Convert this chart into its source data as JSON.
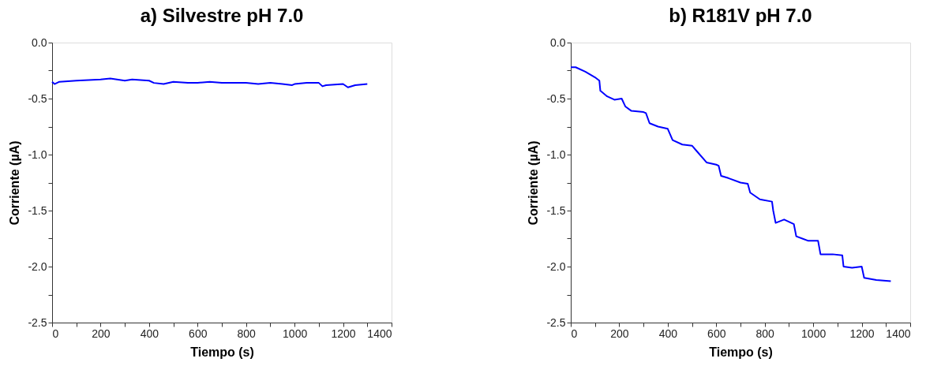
{
  "chart_data": [
    {
      "type": "line",
      "title": "a) Silvestre pH 7.0",
      "xlabel": "Tiempo (s)",
      "ylabel": "Corriente (µA)",
      "grid": false,
      "line_style": "solid",
      "xlim": [
        0,
        1400
      ],
      "ylim": [
        -2.5,
        0
      ],
      "xticks": [
        0,
        {
          "value": 100,
          "label": null
        },
        200,
        {
          "value": 300,
          "label": null
        },
        400,
        {
          "value": 500,
          "label": null
        },
        600,
        {
          "value": 700,
          "label": null
        },
        800,
        {
          "value": 900,
          "label": null
        },
        1000,
        {
          "value": 1100,
          "label": null
        },
        1200,
        {
          "value": 1300,
          "label": null
        },
        1400
      ],
      "yticks": [
        {
          "value": -2.5,
          "label": "-2.5"
        },
        {
          "value": -2.25,
          "label": null
        },
        {
          "value": -2,
          "label": "-2.0"
        },
        {
          "value": -1.75,
          "label": null
        },
        {
          "value": -1.5,
          "label": "-1.5"
        },
        {
          "value": -1.25,
          "label": null
        },
        {
          "value": -1,
          "label": "-1.0"
        },
        {
          "value": -0.75,
          "label": null
        },
        {
          "value": -0.5,
          "label": "-0.5"
        },
        {
          "value": -0.25,
          "label": null
        },
        {
          "value": 0,
          "label": "0.0"
        }
      ],
      "series": [
        {
          "color": "#0000ff",
          "x": [
            0,
            10,
            30,
            100,
            200,
            240,
            300,
            330,
            400,
            420,
            460,
            500,
            560,
            600,
            650,
            700,
            760,
            800,
            850,
            900,
            950,
            990,
            1000,
            1050,
            1100,
            1115,
            1130,
            1200,
            1220,
            1250,
            1300
          ],
          "values": [
            -0.35,
            -0.37,
            -0.35,
            -0.34,
            -0.33,
            -0.32,
            -0.34,
            -0.33,
            -0.34,
            -0.36,
            -0.37,
            -0.35,
            -0.36,
            -0.36,
            -0.35,
            -0.36,
            -0.36,
            -0.36,
            -0.37,
            -0.36,
            -0.37,
            -0.38,
            -0.37,
            -0.36,
            -0.36,
            -0.39,
            -0.38,
            -0.37,
            -0.4,
            -0.38,
            -0.37
          ]
        }
      ]
    },
    {
      "type": "line",
      "title": "b) R181V pH 7.0",
      "xlabel": "Tiempo (s)",
      "ylabel": "Corriente (µA)",
      "grid": false,
      "line_style": "solid",
      "xlim": [
        0,
        1400
      ],
      "ylim": [
        -2.5,
        0
      ],
      "xticks": [
        0,
        {
          "value": 100,
          "label": null
        },
        200,
        {
          "value": 300,
          "label": null
        },
        400,
        {
          "value": 500,
          "label": null
        },
        600,
        {
          "value": 700,
          "label": null
        },
        800,
        {
          "value": 900,
          "label": null
        },
        1000,
        {
          "value": 1100,
          "label": null
        },
        1200,
        {
          "value": 1300,
          "label": null
        },
        1400
      ],
      "yticks": [
        {
          "value": -2.5,
          "label": "-2.5"
        },
        {
          "value": -2.25,
          "label": null
        },
        {
          "value": -2,
          "label": "-2.0"
        },
        {
          "value": -1.75,
          "label": null
        },
        {
          "value": -1.5,
          "label": "-1.5"
        },
        {
          "value": -1.25,
          "label": null
        },
        {
          "value": -1,
          "label": "-1.0"
        },
        {
          "value": -0.75,
          "label": null
        },
        {
          "value": -0.5,
          "label": "-0.5"
        },
        {
          "value": -0.25,
          "label": null
        },
        {
          "value": 0,
          "label": "0.0"
        }
      ],
      "series": [
        {
          "color": "#0000ff",
          "x": [
            0,
            20,
            60,
            100,
            118,
            122,
            150,
            180,
            210,
            225,
            250,
            300,
            310,
            325,
            360,
            400,
            420,
            460,
            500,
            520,
            560,
            600,
            610,
            620,
            650,
            700,
            730,
            740,
            780,
            830,
            835,
            845,
            880,
            920,
            930,
            980,
            1020,
            1030,
            1080,
            1120,
            1125,
            1160,
            1200,
            1210,
            1260,
            1320
          ],
          "values": [
            -0.22,
            -0.22,
            -0.26,
            -0.31,
            -0.34,
            -0.43,
            -0.48,
            -0.51,
            -0.5,
            -0.57,
            -0.61,
            -0.62,
            -0.63,
            -0.72,
            -0.75,
            -0.77,
            -0.87,
            -0.91,
            -0.92,
            -0.97,
            -1.07,
            -1.09,
            -1.1,
            -1.19,
            -1.21,
            -1.25,
            -1.26,
            -1.34,
            -1.4,
            -1.42,
            -1.5,
            -1.61,
            -1.58,
            -1.62,
            -1.73,
            -1.77,
            -1.77,
            -1.89,
            -1.89,
            -1.9,
            -2.0,
            -2.01,
            -2.0,
            -2.1,
            -2.12,
            -2.13
          ]
        }
      ]
    }
  ]
}
